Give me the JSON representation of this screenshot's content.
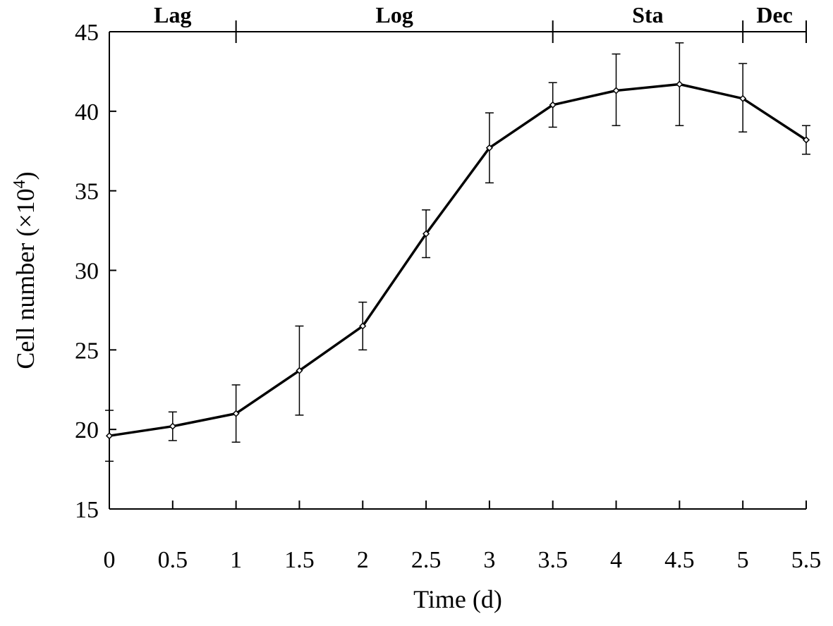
{
  "chart_data": {
    "type": "line",
    "xlabel": "Time (d)",
    "ylabel_main": "Cell number (×10",
    "ylabel_exp": "4",
    "ylabel_close": ")",
    "xlim": [
      0,
      5.5
    ],
    "ylim": [
      15,
      45
    ],
    "x_ticks": [
      0,
      0.5,
      1,
      1.5,
      2,
      2.5,
      3,
      3.5,
      4,
      4.5,
      5,
      5.5
    ],
    "x_tick_labels": [
      "0",
      "0.5",
      "1",
      "1.5",
      "2",
      "2.5",
      "3",
      "3.5",
      "4",
      "4.5",
      "5",
      "5.5"
    ],
    "y_ticks": [
      15,
      20,
      25,
      30,
      35,
      40,
      45
    ],
    "y_tick_labels": [
      "15",
      "20",
      "25",
      "30",
      "35",
      "40",
      "45"
    ],
    "grid": false,
    "series": [
      {
        "x": [
          0,
          0.5,
          1,
          1.5,
          2,
          2.5,
          3,
          3.5,
          4,
          4.5,
          5,
          5.5
        ],
        "y": [
          19.6,
          20.2,
          21.0,
          23.7,
          26.5,
          32.3,
          37.7,
          40.4,
          41.3,
          41.7,
          40.8,
          38.2
        ],
        "err_low": [
          18.0,
          19.3,
          19.2,
          20.9,
          25.0,
          30.8,
          35.5,
          39.0,
          39.1,
          39.1,
          38.7,
          37.3
        ],
        "err_high": [
          21.2,
          21.1,
          22.8,
          26.5,
          28.0,
          33.8,
          39.9,
          41.8,
          43.6,
          44.3,
          43.0,
          39.1
        ]
      }
    ],
    "phases": [
      {
        "label": "Lag",
        "start": 0,
        "end": 1
      },
      {
        "label": "Log",
        "start": 1,
        "end": 3.5
      },
      {
        "label": "Sta",
        "start": 3.5,
        "end": 5
      },
      {
        "label": "Dec",
        "start": 5,
        "end": 5.5
      }
    ],
    "phase_boundaries": [
      1,
      3.5,
      5,
      5.5
    ]
  }
}
